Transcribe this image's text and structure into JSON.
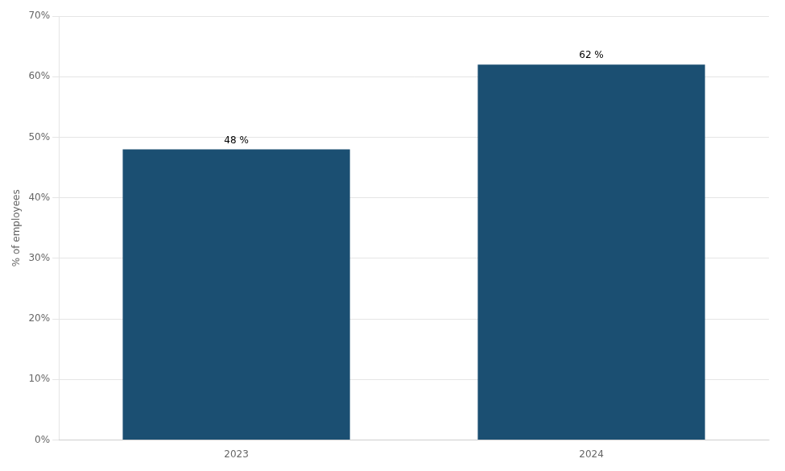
{
  "chart_data": {
    "type": "bar",
    "categories": [
      "2023",
      "2024"
    ],
    "values": [
      48,
      62
    ],
    "value_labels": [
      "48 %",
      "62 %"
    ],
    "data_labels": true,
    "color": "#1B4F72",
    "ylabel": "% of employees",
    "ylim": [
      0,
      70
    ],
    "yticks": [
      {
        "value": 0,
        "label": "0%"
      },
      {
        "value": 10,
        "label": "10%"
      },
      {
        "value": 20,
        "label": "20%"
      },
      {
        "value": 30,
        "label": "30%"
      },
      {
        "value": 40,
        "label": "40%"
      },
      {
        "value": 50,
        "label": "50%"
      },
      {
        "value": 60,
        "label": "60%"
      },
      {
        "value": 70,
        "label": "70%"
      }
    ],
    "grid": true
  }
}
